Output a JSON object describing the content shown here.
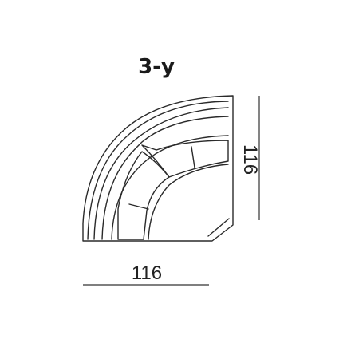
{
  "diagram": {
    "title": "3-y",
    "width_label": "116",
    "depth_label": "116"
  },
  "colors": {
    "stroke": "#2a2a2a",
    "text": "#1a1a1a",
    "background": "#ffffff"
  }
}
